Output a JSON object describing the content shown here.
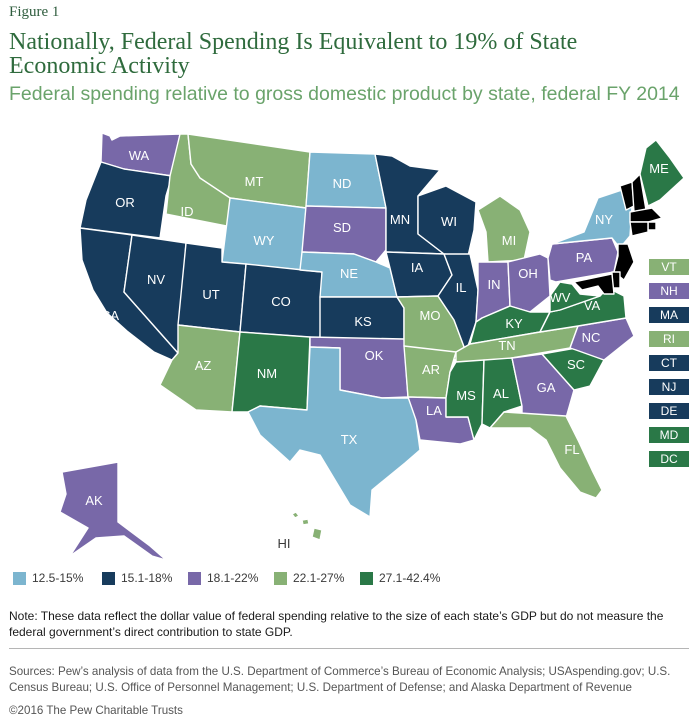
{
  "figure_label": "Figure 1",
  "title": "Nationally, Federal Spending Is Equivalent to 19% of State Economic Activity",
  "subtitle": "Federal spending relative to gross domestic product by state, federal FY 2014",
  "legend": [
    {
      "range": "12.5-15%",
      "color": "#7cb5cf"
    },
    {
      "range": "15.1-18%",
      "color": "#173b5c"
    },
    {
      "range": "18.1-22%",
      "color": "#7868a8"
    },
    {
      "range": "22.1-27%",
      "color": "#88b175"
    },
    {
      "range": "27.1-42.4%",
      "color": "#2a7847"
    }
  ],
  "states": {
    "WA": {
      "label": "WA",
      "range": "18.1-22%"
    },
    "OR": {
      "label": "OR",
      "range": "15.1-18%"
    },
    "CA": {
      "label": "CA",
      "range": "15.1-18%"
    },
    "NV": {
      "label": "NV",
      "range": "15.1-18%"
    },
    "ID": {
      "label": "ID",
      "range": "22.1-27%"
    },
    "MT": {
      "label": "MT",
      "range": "22.1-27%"
    },
    "WY": {
      "label": "WY",
      "range": "12.5-15%"
    },
    "UT": {
      "label": "UT",
      "range": "15.1-18%"
    },
    "CO": {
      "label": "CO",
      "range": "15.1-18%"
    },
    "AZ": {
      "label": "AZ",
      "range": "22.1-27%"
    },
    "NM": {
      "label": "NM",
      "range": "27.1-42.4%"
    },
    "ND": {
      "label": "ND",
      "range": "12.5-15%"
    },
    "SD": {
      "label": "SD",
      "range": "18.1-22%"
    },
    "NE": {
      "label": "NE",
      "range": "12.5-15%"
    },
    "KS": {
      "label": "KS",
      "range": "15.1-18%"
    },
    "OK": {
      "label": "OK",
      "range": "18.1-22%"
    },
    "TX": {
      "label": "TX",
      "range": "12.5-15%"
    },
    "MN": {
      "label": "MN",
      "range": "15.1-18%"
    },
    "IA": {
      "label": "IA",
      "range": "15.1-18%"
    },
    "MO": {
      "label": "MO",
      "range": "22.1-27%"
    },
    "AR": {
      "label": "AR",
      "range": "22.1-27%"
    },
    "LA": {
      "label": "LA",
      "range": "18.1-22%"
    },
    "WI": {
      "label": "WI",
      "range": "15.1-18%"
    },
    "IL": {
      "label": "IL",
      "range": "15.1-18%"
    },
    "MI": {
      "label": "MI",
      "range": "22.1-27%"
    },
    "IN": {
      "label": "IN",
      "range": "18.1-22%"
    },
    "OH": {
      "label": "OH",
      "range": "18.1-22%"
    },
    "KY": {
      "label": "KY",
      "range": "27.1-42.4%"
    },
    "TN": {
      "label": "TN",
      "range": "22.1-27%"
    },
    "MS": {
      "label": "MS",
      "range": "27.1-42.4%"
    },
    "AL": {
      "label": "AL",
      "range": "27.1-42.4%"
    },
    "GA": {
      "label": "GA",
      "range": "18.1-22%"
    },
    "FL": {
      "label": "FL",
      "range": "22.1-27%"
    },
    "SC": {
      "label": "SC",
      "range": "27.1-42.4%"
    },
    "NC": {
      "label": "NC",
      "range": "18.1-22%"
    },
    "VA": {
      "label": "VA",
      "range": "27.1-42.4%"
    },
    "WV": {
      "label": "WV",
      "range": "27.1-42.4%"
    },
    "PA": {
      "label": "PA",
      "range": "18.1-22%"
    },
    "NY": {
      "label": "NY",
      "range": "12.5-15%"
    },
    "ME": {
      "label": "ME",
      "range": "27.1-42.4%"
    },
    "AK": {
      "label": "AK",
      "range": "18.1-22%"
    },
    "HI": {
      "label": "HI",
      "range": "22.1-27%"
    }
  },
  "northeast_boxes": [
    {
      "label": "VT",
      "range": "22.1-27%"
    },
    {
      "label": "NH",
      "range": "18.1-22%"
    },
    {
      "label": "MA",
      "range": "15.1-18%"
    },
    {
      "label": "RI",
      "range": "22.1-27%"
    },
    {
      "label": "CT",
      "range": "15.1-18%"
    },
    {
      "label": "NJ",
      "range": "15.1-18%"
    },
    {
      "label": "DE",
      "range": "15.1-18%"
    },
    {
      "label": "MD",
      "range": "27.1-42.4%"
    },
    {
      "label": "DC",
      "range": "27.1-42.4%"
    }
  ],
  "note": "Note: These data reflect the dollar value of federal spending relative to the size of each state’s GDP but do not measure the federal government’s direct contribution to state GDP.",
  "sources": "Sources: Pew’s analysis of data from the U.S. Department of Commerce’s Bureau of Economic Analysis; USAspending.gov; U.S. Census Bureau; U.S. Office of Personnel Management; U.S. Department of Defense; and Alaska Department of Revenue",
  "copyright": "©2016 The Pew Charitable Trusts"
}
